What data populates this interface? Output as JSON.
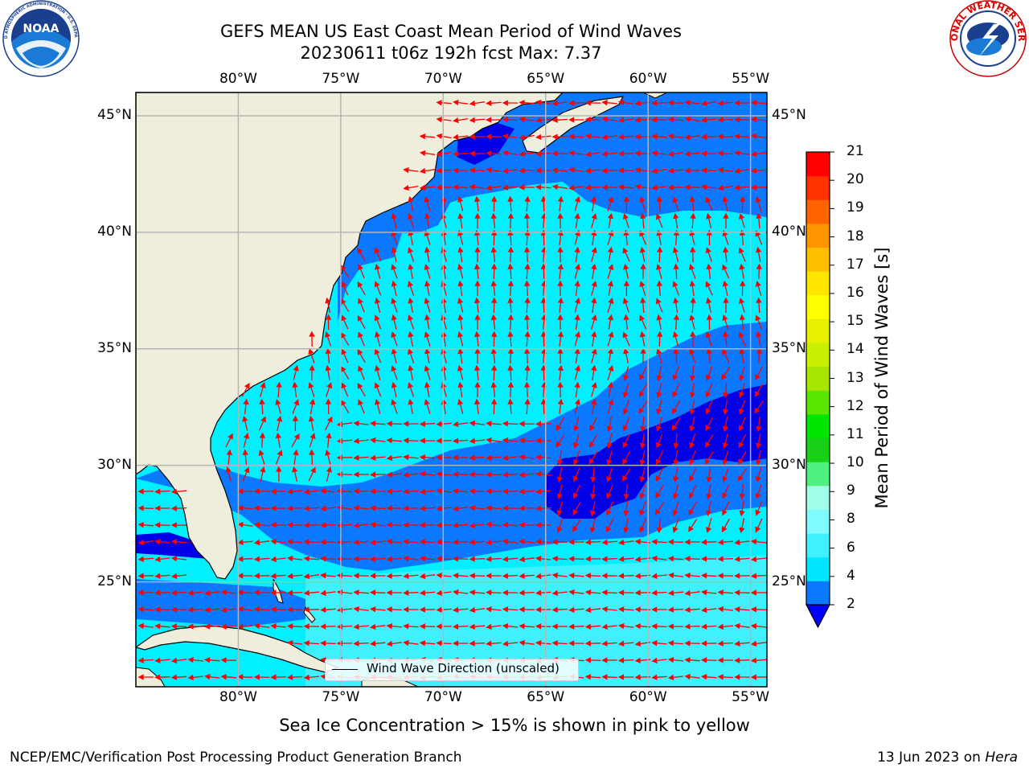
{
  "header": {
    "title_line1": "GEFS MEAN US East Coast Mean Period of Wind Waves",
    "title_line2": "20230611 t06z 192h fcst   Max: 7.37",
    "noaa_logo_text": "NOAA",
    "noaa_logo_ring_text": "NATIONAL OCEANIC AND ATMOSPHERIC ADMINISTRATION · U.S. DEPARTMENT OF COMMERCE",
    "nws_logo_ring_text": "NATIONAL WEATHER SERVICE"
  },
  "map": {
    "projection": "plate carree",
    "lon_range": [
      -85,
      -54.2
    ],
    "lat_range": [
      20.5,
      46
    ],
    "lon_ticks": [
      {
        "value": -80,
        "label": "80°W"
      },
      {
        "value": -75,
        "label": "75°W"
      },
      {
        "value": -70,
        "label": "70°W"
      },
      {
        "value": -65,
        "label": "65°W"
      },
      {
        "value": -60,
        "label": "60°W"
      },
      {
        "value": -55,
        "label": "55°W"
      }
    ],
    "lat_ticks": [
      {
        "value": 45,
        "label": "45°N"
      },
      {
        "value": 40,
        "label": "40°N"
      },
      {
        "value": 35,
        "label": "35°N"
      },
      {
        "value": 30,
        "label": "30°N"
      },
      {
        "value": 25,
        "label": "25°N"
      }
    ],
    "land_color": "#efeddb",
    "grid_color": "#b5b5b5",
    "arrow_color": "#ff0000",
    "vector_legend": "Wind Wave Direction (unscaled)"
  },
  "colorbar": {
    "label": "Mean Period of Wind Waves [s]",
    "ticks": [
      "2",
      "4",
      "6",
      "8",
      "9",
      "10",
      "11",
      "12",
      "13",
      "14",
      "15",
      "16",
      "17",
      "18",
      "19",
      "20",
      "21"
    ],
    "colors": [
      "#0a78ff",
      "#00e6ff",
      "#40f0ff",
      "#80fcff",
      "#a0ffe6",
      "#50f080",
      "#18d018",
      "#00e600",
      "#5ae600",
      "#a6e600",
      "#c8f000",
      "#e6f000",
      "#ffff00",
      "#ffe600",
      "#ffbe00",
      "#ff9600",
      "#ff6400",
      "#ff3200",
      "#ff0000"
    ],
    "under_color": "#0000ff"
  },
  "note": "Sea Ice Concentration > 15% is shown in pink to yellow",
  "footer": {
    "left": "NCEP/EMC/Verification Post Processing Product Generation Branch",
    "date": "13 Jun 2023 on",
    "machine": "Hera"
  }
}
